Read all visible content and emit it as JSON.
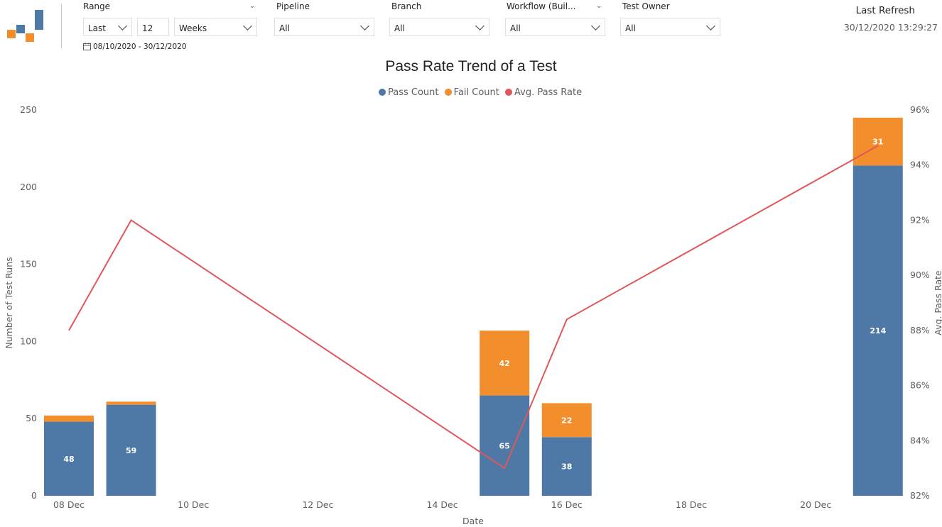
{
  "colors": {
    "pass": "#4e79a7",
    "fail": "#f28e2b",
    "rate": "#e15759",
    "logo_blue": "#4e79a7",
    "logo_orange": "#f28e2b"
  },
  "filters": {
    "range": {
      "title": "Range",
      "mode": "Last",
      "count": "12",
      "unit": "Weeks",
      "date_range": "08/10/2020 - 30/12/2020"
    },
    "pipeline": {
      "title": "Pipeline",
      "value": "All"
    },
    "branch": {
      "title": "Branch",
      "value": "All"
    },
    "workflow": {
      "title": "Workflow (Buil...",
      "value": "All"
    },
    "test_owner": {
      "title": "Test Owner",
      "value": "All"
    }
  },
  "refresh": {
    "label": "Last Refresh",
    "value": "30/12/2020 13:29:27"
  },
  "chart_data": {
    "type": "bar",
    "title": "Pass Rate Trend of a Test",
    "xlabel": "Date",
    "ylabel": "Number of Test Runs",
    "y2label": "Avg. Pass Rate",
    "ylim": [
      0,
      250
    ],
    "y2lim": [
      82,
      96
    ],
    "yticks": [
      0,
      50,
      100,
      150,
      200,
      250
    ],
    "y2ticks": [
      "82%",
      "84%",
      "86%",
      "88%",
      "90%",
      "92%",
      "94%",
      "96%"
    ],
    "xticks": [
      "08 Dec",
      "10 Dec",
      "12 Dec",
      "14 Dec",
      "16 Dec",
      "18 Dec",
      "20 Dec"
    ],
    "legend": [
      "Pass Count",
      "Fail Count",
      "Avg. Pass Rate"
    ],
    "legend_position": "top-center",
    "categories": [
      "2020-12-08",
      "2020-12-09",
      "2020-12-15",
      "2020-12-16",
      "2020-12-21"
    ],
    "series": [
      {
        "name": "Pass Count",
        "type": "bar",
        "values": [
          48,
          59,
          65,
          38,
          214
        ]
      },
      {
        "name": "Fail Count",
        "type": "bar",
        "values": [
          4,
          2,
          42,
          22,
          31
        ]
      },
      {
        "name": "Avg. Pass Rate",
        "type": "line",
        "axis": "right",
        "values": [
          88.0,
          92.0,
          83.0,
          88.4,
          94.7
        ]
      }
    ]
  }
}
